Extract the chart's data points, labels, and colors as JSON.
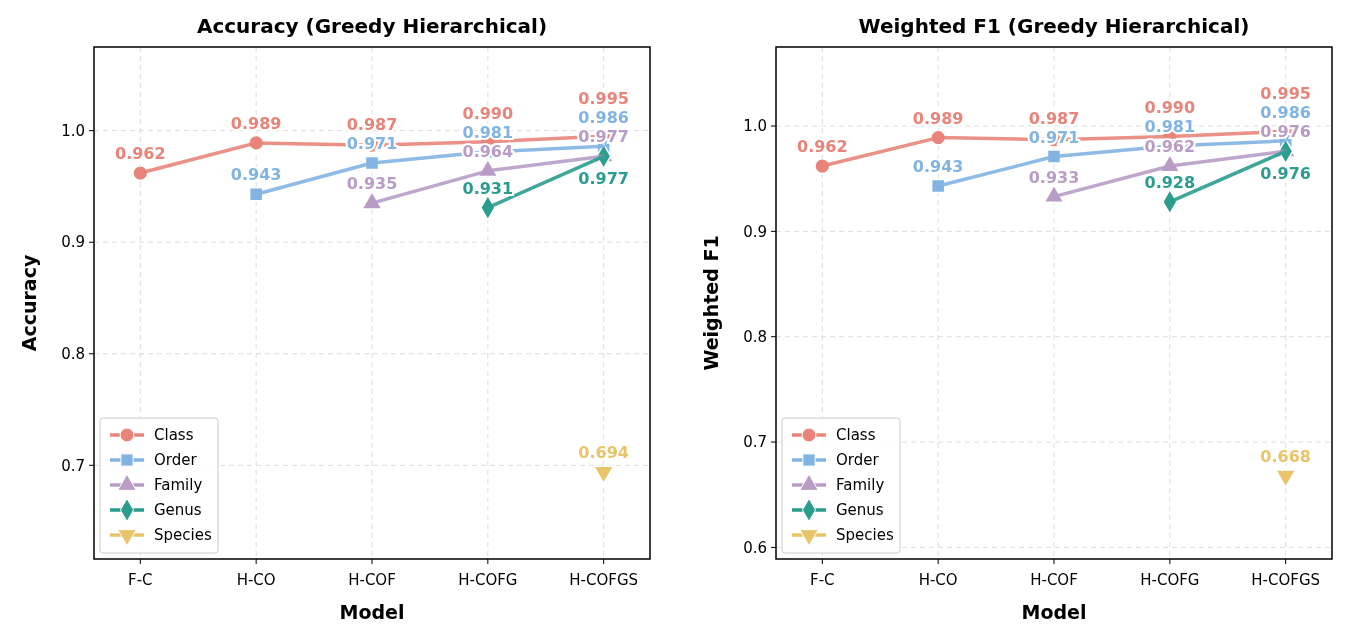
{
  "chart_data": [
    {
      "type": "line",
      "title": "Accuracy (Greedy Hierarchical)",
      "xlabel": "Model",
      "ylabel": "Accuracy",
      "categories": [
        "F-C",
        "H-CO",
        "H-COF",
        "H-COFG",
        "H-COFGS"
      ],
      "ylim": [
        0.616,
        1.075
      ],
      "yticks": [
        {
          "value": 0.7,
          "label": "0.7"
        },
        {
          "value": 0.8,
          "label": "0.8"
        },
        {
          "value": 0.9,
          "label": "0.9"
        },
        {
          "value": 1.0,
          "label": "1.0"
        }
      ],
      "grid": true,
      "legend": "bottom left",
      "line_style": "solid",
      "series": [
        {
          "name": "Class",
          "color": "#e8847a",
          "marker": "circle",
          "values": [
            0.962,
            0.989,
            0.987,
            0.99,
            0.995
          ],
          "value_labels": [
            "0.962",
            "0.989",
            "0.987",
            "0.990",
            "0.995"
          ]
        },
        {
          "name": "Order",
          "color": "#82b4e3",
          "marker": "square",
          "values": [
            null,
            0.943,
            0.971,
            0.981,
            0.986
          ],
          "value_labels": [
            null,
            "0.943",
            "0.971",
            "0.981",
            "0.986"
          ]
        },
        {
          "name": "Family",
          "color": "#b89cc6",
          "marker": "triangle",
          "values": [
            null,
            null,
            0.935,
            0.964,
            0.977
          ],
          "value_labels": [
            null,
            null,
            "0.935",
            "0.964",
            "0.977"
          ]
        },
        {
          "name": "Genus",
          "color": "#2a9d8f",
          "marker": "diamond",
          "values": [
            null,
            null,
            null,
            0.931,
            0.977
          ],
          "value_labels": [
            null,
            null,
            null,
            "0.931",
            "0.977"
          ]
        },
        {
          "name": "Species",
          "color": "#e9c46a",
          "marker": "triangle-down",
          "values": [
            null,
            null,
            null,
            null,
            0.694
          ],
          "value_labels": [
            null,
            null,
            null,
            null,
            "0.694"
          ]
        }
      ]
    },
    {
      "type": "line",
      "title": "Weighted F1 (Greedy Hierarchical)",
      "xlabel": "Model",
      "ylabel": "Weighted F1",
      "categories": [
        "F-C",
        "H-CO",
        "H-COF",
        "H-COFG",
        "H-COFGS"
      ],
      "ylim": [
        0.589,
        1.075
      ],
      "yticks": [
        {
          "value": 0.6,
          "label": "0.6"
        },
        {
          "value": 0.7,
          "label": "0.7"
        },
        {
          "value": 0.8,
          "label": "0.8"
        },
        {
          "value": 0.9,
          "label": "0.9"
        },
        {
          "value": 1.0,
          "label": "1.0"
        }
      ],
      "grid": true,
      "legend": "bottom left",
      "line_style": "solid",
      "series": [
        {
          "name": "Class",
          "color": "#e8847a",
          "marker": "circle",
          "values": [
            0.962,
            0.989,
            0.987,
            0.99,
            0.995
          ],
          "value_labels": [
            "0.962",
            "0.989",
            "0.987",
            "0.990",
            "0.995"
          ]
        },
        {
          "name": "Order",
          "color": "#82b4e3",
          "marker": "square",
          "values": [
            null,
            0.943,
            0.971,
            0.981,
            0.986
          ],
          "value_labels": [
            null,
            "0.943",
            "0.971",
            "0.981",
            "0.986"
          ]
        },
        {
          "name": "Family",
          "color": "#b89cc6",
          "marker": "triangle",
          "values": [
            null,
            null,
            0.933,
            0.962,
            0.976
          ],
          "value_labels": [
            null,
            null,
            "0.933",
            "0.962",
            "0.976"
          ]
        },
        {
          "name": "Genus",
          "color": "#2a9d8f",
          "marker": "diamond",
          "values": [
            null,
            null,
            null,
            0.928,
            0.976
          ],
          "value_labels": [
            null,
            null,
            null,
            "0.928",
            "0.976"
          ]
        },
        {
          "name": "Species",
          "color": "#e9c46a",
          "marker": "triangle-down",
          "values": [
            null,
            null,
            null,
            null,
            0.668
          ],
          "value_labels": [
            null,
            null,
            null,
            null,
            "0.668"
          ]
        }
      ]
    }
  ]
}
